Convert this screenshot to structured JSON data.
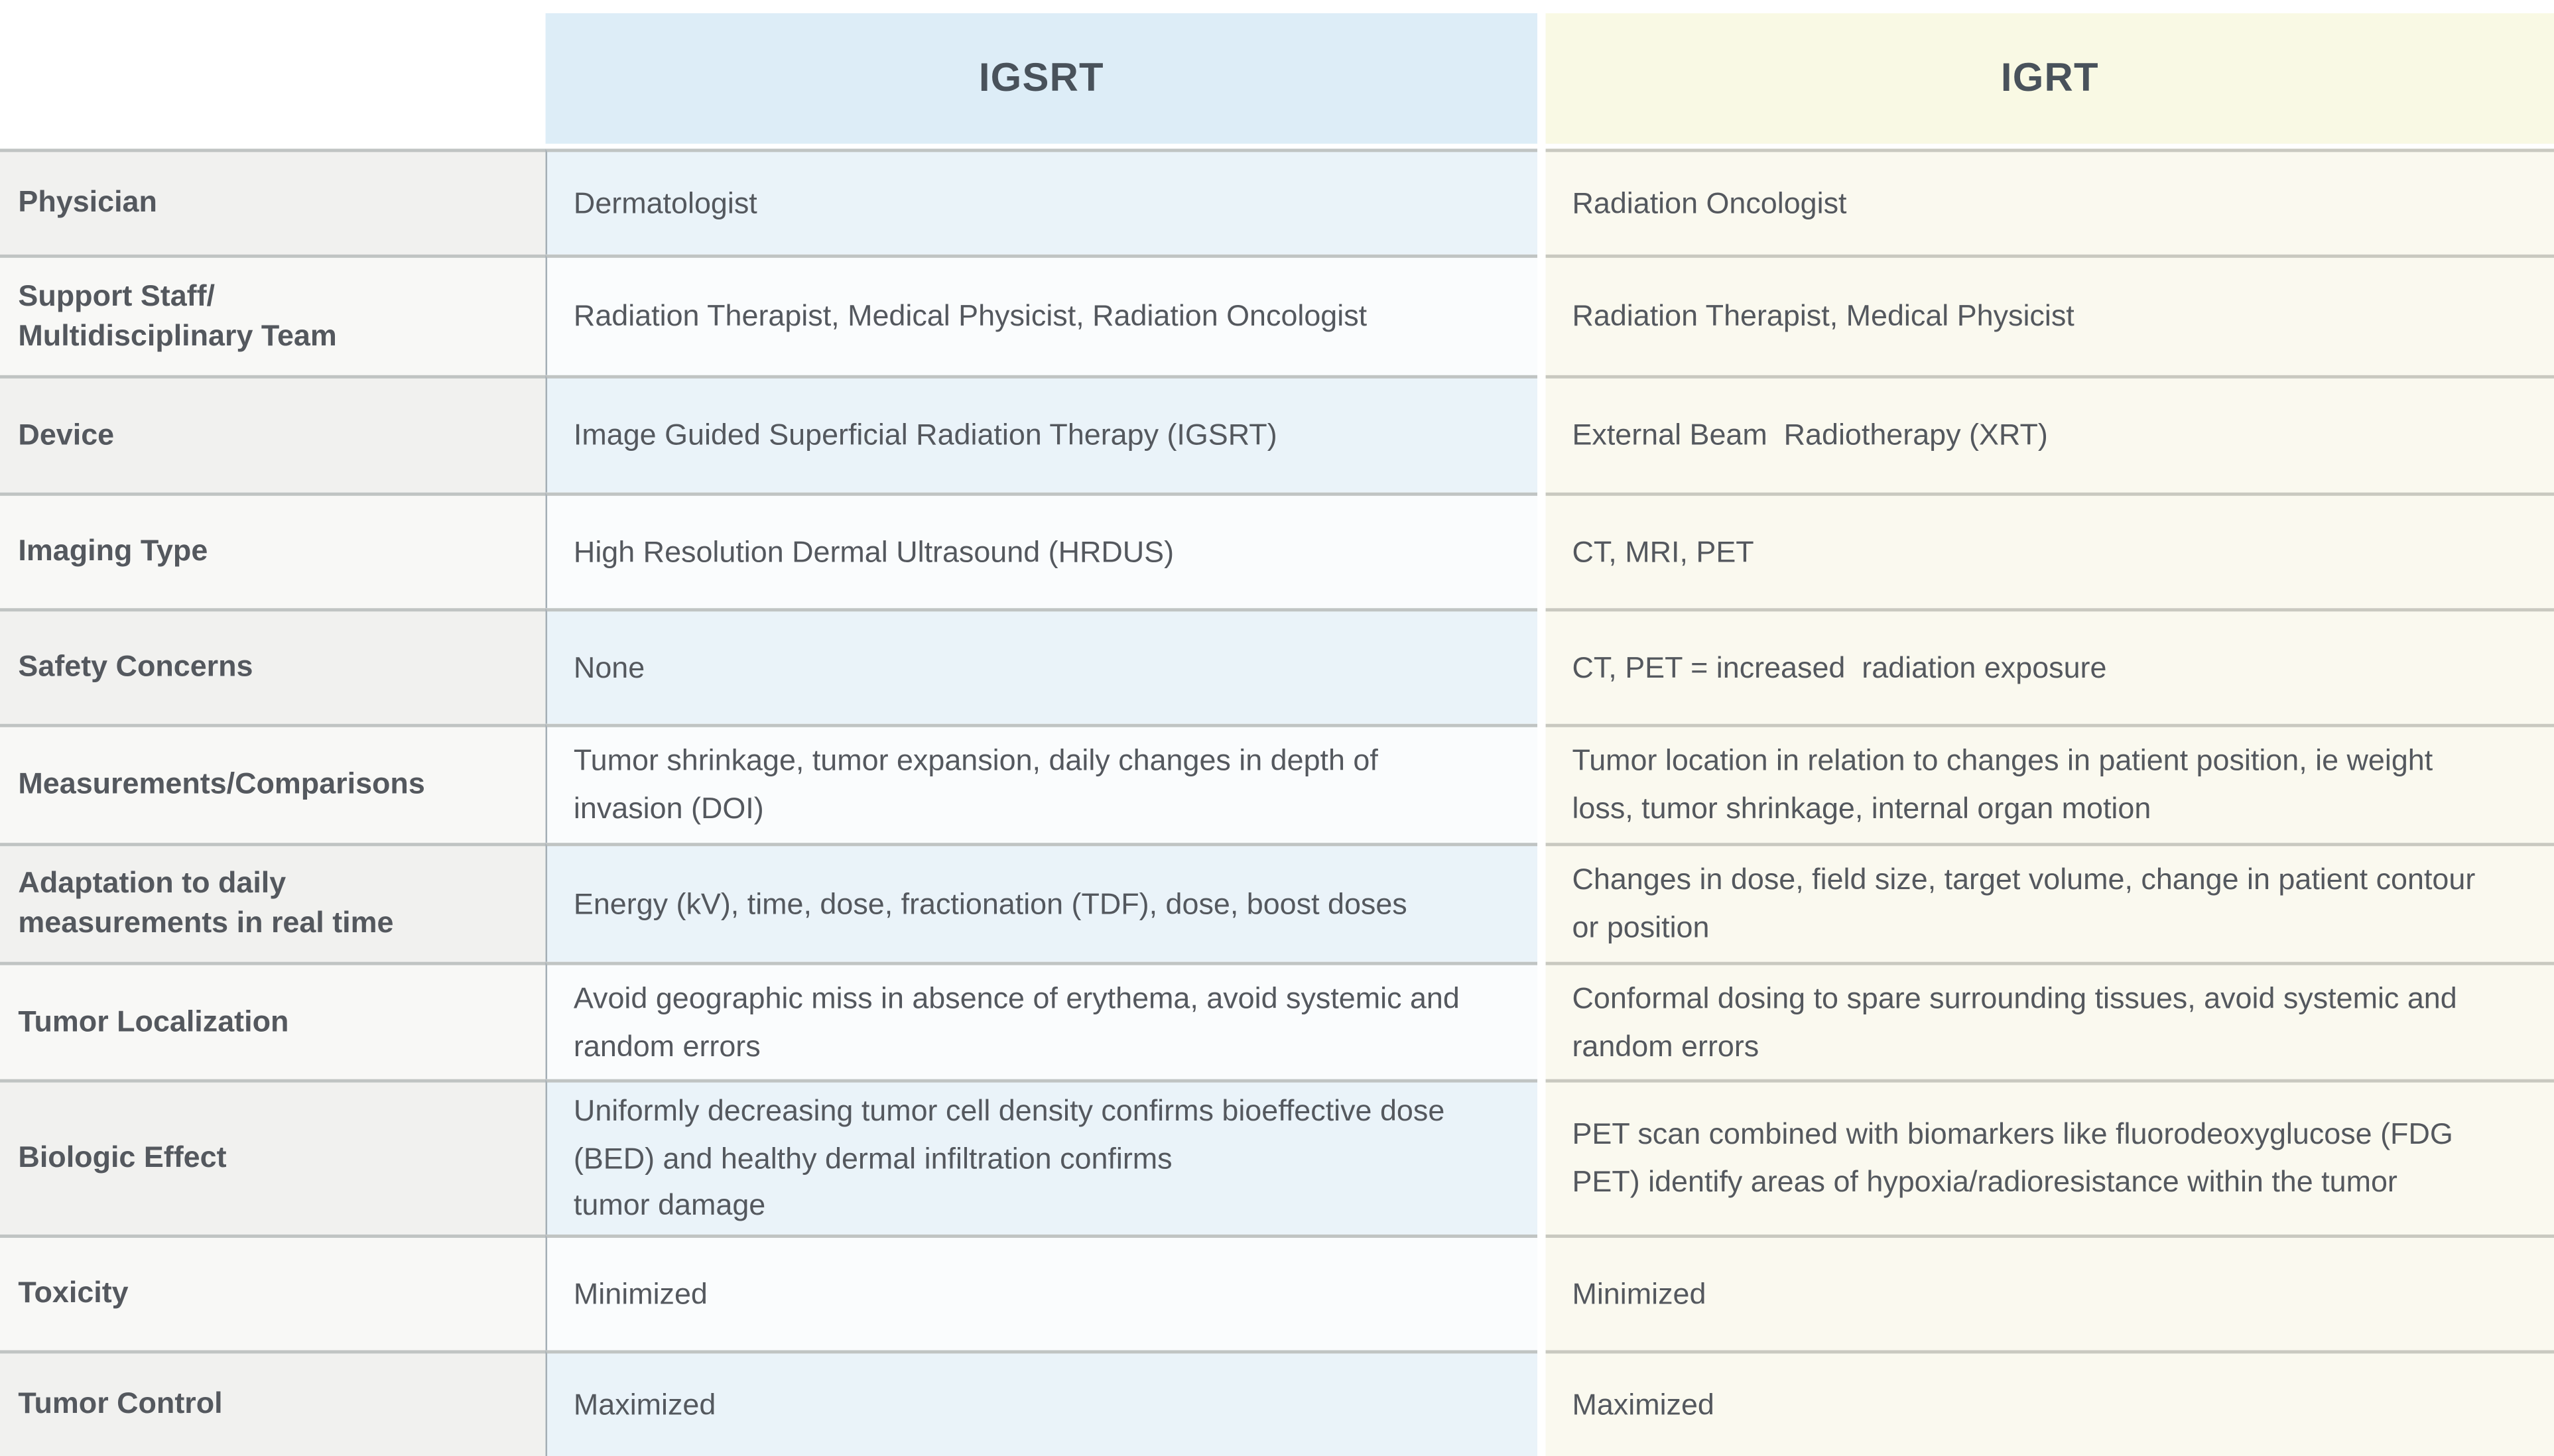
{
  "table": {
    "columns": [
      {
        "key": "igsrt",
        "label": "IGSRT"
      },
      {
        "key": "igrt",
        "label": "IGRT"
      }
    ],
    "rows": [
      {
        "label": "Physician",
        "igsrt": "Dermatologist",
        "igrt": "Radiation Oncologist"
      },
      {
        "label": "Support Staff/\nMultidisciplinary Team",
        "igsrt": "Radiation Therapist, Medical Physicist, Radiation Oncologist",
        "igrt": "Radiation Therapist, Medical Physicist"
      },
      {
        "label": "Device",
        "igsrt": "Image Guided Superficial Radiation Therapy (IGSRT)",
        "igrt": "External Beam  Radiotherapy (XRT)"
      },
      {
        "label": "Imaging Type",
        "igsrt": "High Resolution Dermal Ultrasound (HRDUS)",
        "igrt": "CT, MRI, PET"
      },
      {
        "label": "Safety Concerns",
        "igsrt": "None",
        "igrt": "CT, PET = increased  radiation exposure"
      },
      {
        "label": "Measurements/Comparisons",
        "igsrt": "Tumor shrinkage, tumor expansion, daily changes in depth of invasion (DOI)",
        "igrt": "Tumor location in relation to changes in patient position, ie weight loss, tumor shrinkage, internal organ motion"
      },
      {
        "label": "Adaptation to daily\nmeasurements in real time",
        "igsrt": "Energy (kV), time, dose, fractionation (TDF), dose, boost doses",
        "igrt": "Changes in dose, field size, target volume, change in patient contour or position"
      },
      {
        "label": "Tumor Localization",
        "igsrt": "Avoid geographic miss in absence of erythema, avoid systemic and random errors",
        "igrt": "Conformal dosing to spare surrounding tissues, avoid systemic and random errors"
      },
      {
        "label": "Biologic Effect",
        "igsrt": "Uniformly decreasing tumor cell density confirms bioeffective dose (BED) and healthy dermal infiltration confirms\ntumor damage",
        "igrt": "PET scan combined with biomarkers like fluorodeoxyglucose (FDG PET) identify areas of hypoxia/radioresistance within the tumor"
      },
      {
        "label": "Toxicity",
        "igsrt": "Minimized",
        "igrt": "Minimized"
      },
      {
        "label": "Tumor Control",
        "igsrt": "Maximized",
        "igrt": "Maximized"
      }
    ]
  },
  "colors": {
    "igsrt_header_bg": "#ddedf7",
    "igrt_header_bg": "#f9f9e4",
    "igsrt_row_odd": "#eaf3f9",
    "igsrt_row_even": "#fafcfd",
    "label_row_odd": "#f1f1ef",
    "label_row_even": "#f8f8f6",
    "igrt_row_bg": "#faf9ef",
    "row_divider": "#c0c4c3",
    "column_divider": "#a4aeb5",
    "header_text": "#49525b",
    "body_text": "#54585e"
  }
}
